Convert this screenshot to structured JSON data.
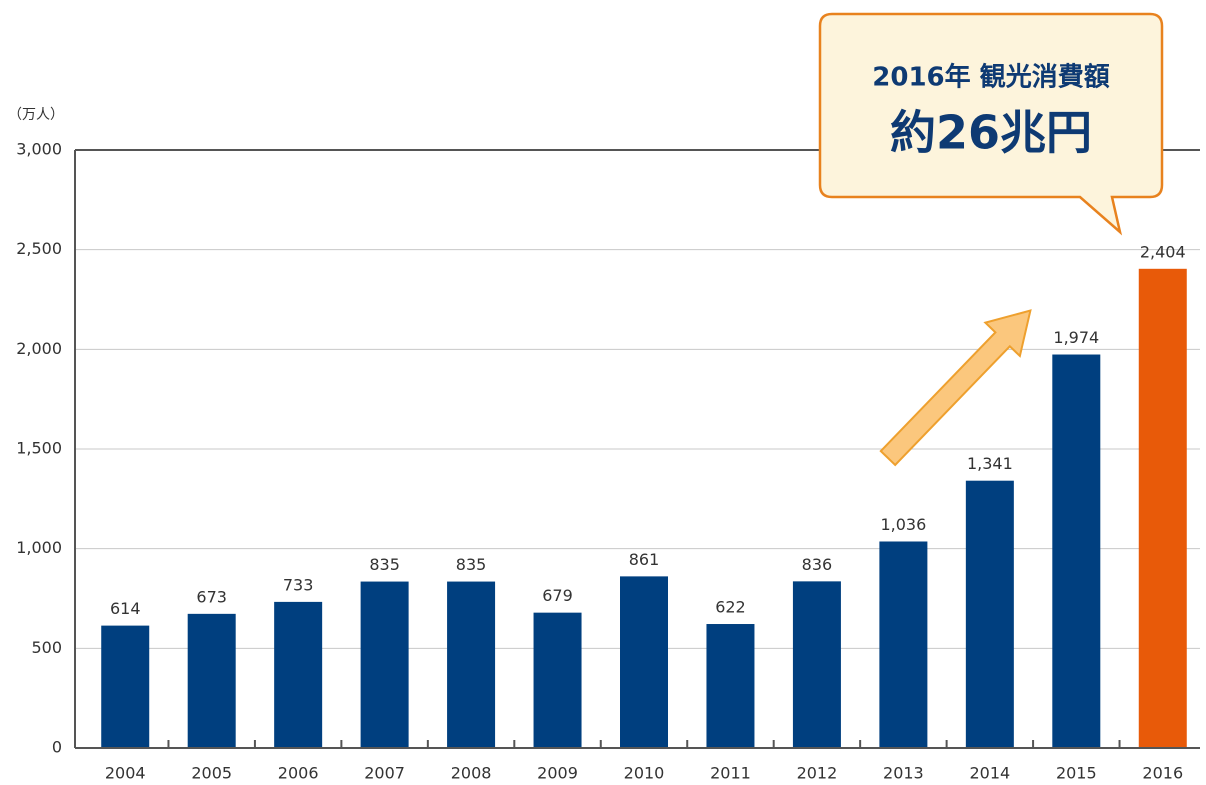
{
  "chart_data": {
    "type": "bar",
    "y_unit": "（万人）",
    "categories": [
      "2004",
      "2005",
      "2006",
      "2007",
      "2008",
      "2009",
      "2010",
      "2011",
      "2012",
      "2013",
      "2014",
      "2015",
      "2016"
    ],
    "values": [
      614,
      673,
      733,
      835,
      835,
      679,
      861,
      622,
      836,
      1036,
      1341,
      1974,
      2404
    ],
    "value_labels": [
      "614",
      "673",
      "733",
      "835",
      "835",
      "679",
      "861",
      "622",
      "836",
      "1,036",
      "1,341",
      "1,974",
      "2,404"
    ],
    "colors": [
      "#003f7f",
      "#003f7f",
      "#003f7f",
      "#003f7f",
      "#003f7f",
      "#003f7f",
      "#003f7f",
      "#003f7f",
      "#003f7f",
      "#003f7f",
      "#003f7f",
      "#003f7f",
      "#e85a09"
    ],
    "ylim": [
      0,
      3000
    ],
    "yticks": [
      0,
      500,
      {
        "value": 1000,
        "label": "1,000"
      },
      {
        "value": 1500,
        "label": "1,500"
      },
      {
        "value": 2000,
        "label": "2,000"
      },
      {
        "value": 2500,
        "label": "2,500"
      },
      {
        "value": 3000,
        "label": "3,000"
      }
    ],
    "grid": true,
    "annotation": {
      "line1": "2016年 観光消費額",
      "line2": "約26兆円"
    }
  }
}
